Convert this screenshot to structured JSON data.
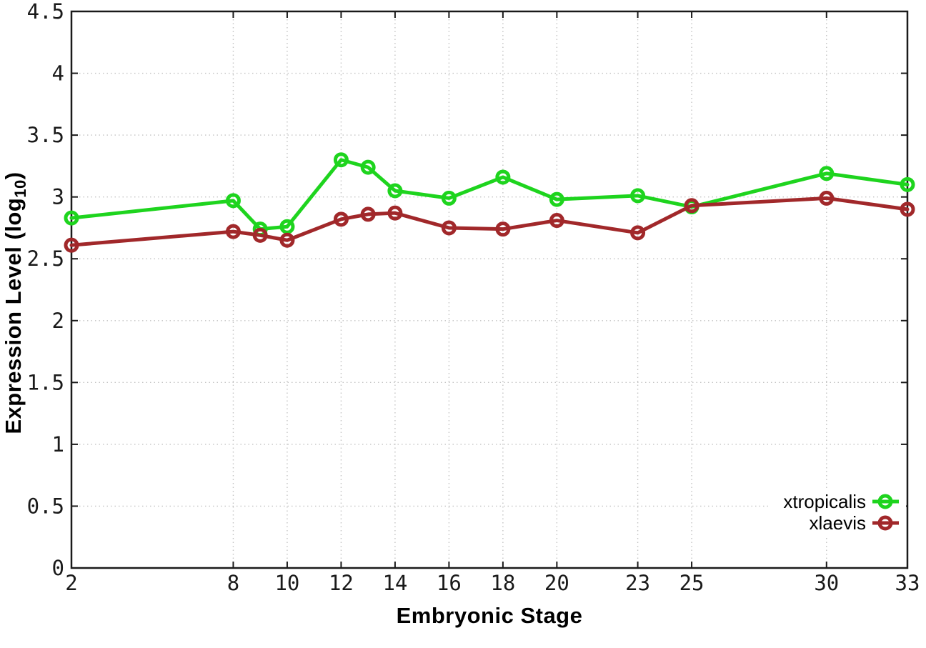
{
  "figure": {
    "background": "#ffffff",
    "axis_color": "#1a1a1a",
    "grid_color": "#c3c3c3",
    "tick_label_color": "#1a1a1a",
    "tick_label_size": 29,
    "legend_label_size": 26
  },
  "chart_data": {
    "type": "line",
    "title": "",
    "xlabel": "Embryonic Stage",
    "ylabel": "Expression Level (log10)",
    "ylabel_display": {
      "pre": "Expression Level (log",
      "sub": "10",
      "post": ")"
    },
    "xlim": [
      2,
      33
    ],
    "ylim": [
      0,
      4.5
    ],
    "x_ticks": [
      2,
      8,
      10,
      12,
      14,
      16,
      18,
      20,
      23,
      25,
      30,
      33
    ],
    "y_ticks": [
      0,
      0.5,
      1,
      1.5,
      2,
      2.5,
      3,
      3.5,
      4,
      4.5
    ],
    "grid": true,
    "grid_style": "dotted",
    "legend_position": "bottom-right",
    "marker": "open-circle",
    "x": [
      2,
      8,
      9,
      10,
      12,
      13,
      14,
      16,
      18,
      20,
      23,
      25,
      30,
      33
    ],
    "series": [
      {
        "name": "xtropicalis",
        "color": "#1ed41e",
        "values": [
          2.83,
          2.97,
          2.74,
          2.76,
          3.3,
          3.24,
          3.05,
          2.99,
          3.16,
          2.98,
          3.01,
          2.92,
          3.19,
          3.1
        ]
      },
      {
        "name": "xlaevis",
        "color": "#a1282a",
        "values": [
          2.61,
          2.72,
          2.69,
          2.65,
          2.82,
          2.86,
          2.87,
          2.75,
          2.74,
          2.81,
          2.71,
          2.93,
          2.99,
          2.9
        ]
      }
    ]
  }
}
